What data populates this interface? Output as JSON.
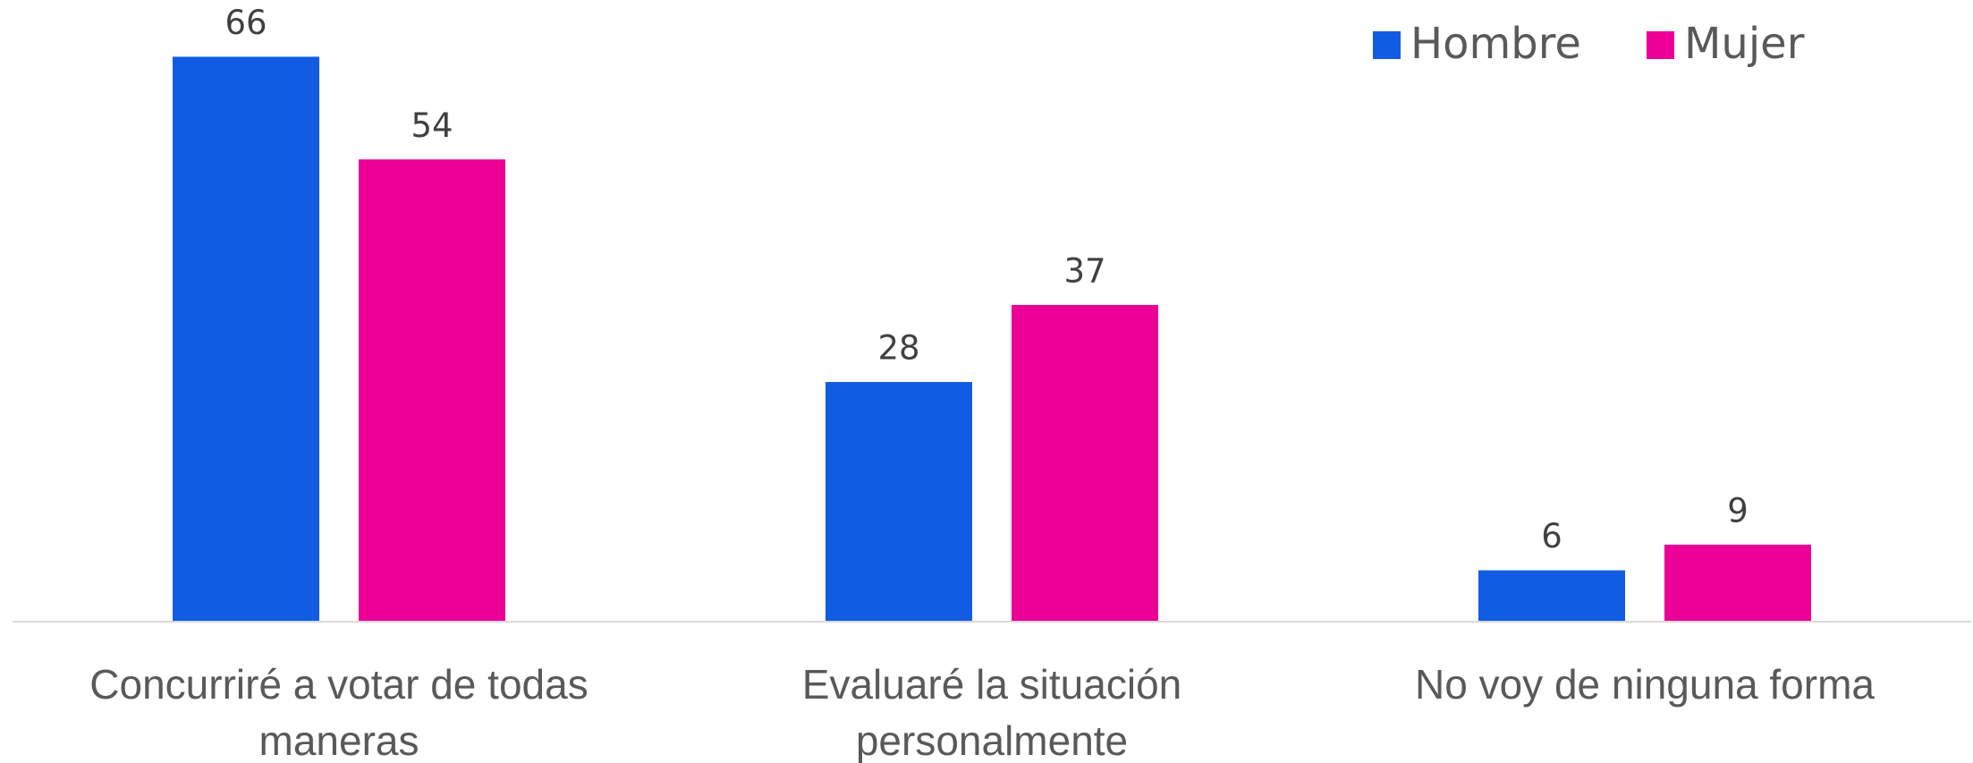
{
  "chart_data": {
    "type": "bar",
    "categories": [
      "Concurriré a votar de todas maneras",
      "Evaluaré la situación personalmente",
      "No voy de ninguna forma"
    ],
    "series": [
      {
        "name": "Hombre",
        "color": "#125ce3",
        "values": [
          66,
          28,
          6
        ]
      },
      {
        "name": "Mujer",
        "color": "#ec0095",
        "values": [
          54,
          37,
          9
        ]
      }
    ],
    "ylim": [
      0,
      72
    ],
    "legend": "top-right",
    "grid": false
  }
}
